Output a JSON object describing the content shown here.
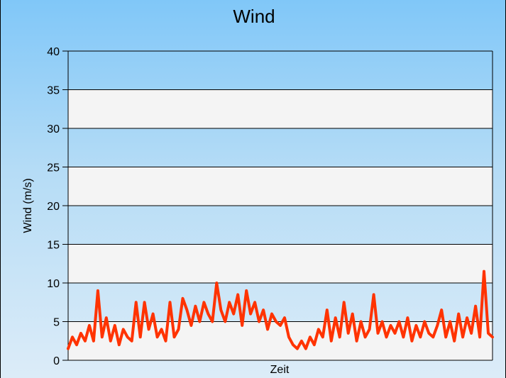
{
  "chart_data": {
    "type": "line",
    "title": "Wind",
    "xlabel": "Zeit",
    "ylabel": "Wind (m/s)",
    "ylim": [
      0,
      40
    ],
    "yticks": [
      0,
      5,
      10,
      15,
      20,
      25,
      30,
      35,
      40
    ],
    "grid": true,
    "legend": "none",
    "series": [
      {
        "color": "#ff3300",
        "x": [
          0,
          1,
          2,
          3,
          4,
          5,
          6,
          7,
          8,
          9,
          10,
          11,
          12,
          13,
          14,
          15,
          16,
          17,
          18,
          19,
          20,
          21,
          22,
          23,
          24,
          25,
          26,
          27,
          28,
          29,
          30,
          31,
          32,
          33,
          34,
          35,
          36,
          37,
          38,
          39,
          40,
          41,
          42,
          43,
          44,
          45,
          46,
          47,
          48,
          49,
          50,
          51,
          52,
          53,
          54,
          55,
          56,
          57,
          58,
          59,
          60,
          61,
          62,
          63,
          64,
          65,
          66,
          67,
          68,
          69,
          70,
          71,
          72,
          73,
          74,
          75,
          76,
          77,
          78,
          79,
          80,
          81,
          82,
          83,
          84,
          85,
          86,
          87,
          88,
          89,
          90,
          91,
          92,
          93,
          94,
          95,
          96,
          97,
          98,
          99,
          100
        ],
        "values": [
          1.5,
          3.0,
          2.0,
          3.5,
          2.5,
          4.5,
          2.5,
          9.0,
          3.0,
          5.5,
          2.5,
          4.5,
          2.0,
          4.0,
          3.0,
          2.5,
          7.5,
          3.0,
          7.5,
          4.0,
          6.0,
          3.0,
          4.0,
          2.5,
          7.5,
          3.0,
          4.0,
          8.0,
          6.5,
          4.5,
          7.0,
          5.0,
          7.5,
          6.0,
          5.0,
          10.0,
          6.5,
          5.0,
          7.5,
          6.0,
          8.5,
          4.5,
          9.0,
          6.0,
          7.5,
          5.0,
          6.5,
          4.0,
          6.0,
          5.0,
          4.5,
          5.5,
          3.0,
          2.0,
          1.5,
          2.5,
          1.5,
          3.0,
          2.0,
          4.0,
          3.0,
          6.5,
          2.5,
          5.5,
          3.0,
          7.5,
          3.5,
          6.0,
          2.5,
          5.0,
          3.0,
          4.0,
          8.5,
          3.5,
          5.0,
          3.0,
          4.5,
          3.5,
          5.0,
          3.0,
          5.5,
          2.5,
          4.5,
          3.0,
          5.0,
          3.5,
          3.0,
          4.5,
          6.5,
          3.0,
          5.0,
          2.5,
          6.0,
          3.0,
          5.5,
          3.5,
          7.0,
          3.0,
          11.5,
          3.5,
          3.0
        ]
      }
    ]
  }
}
